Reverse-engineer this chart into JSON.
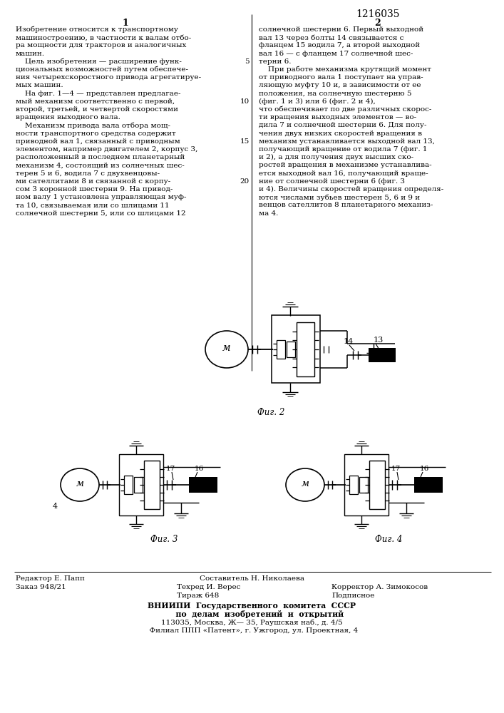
{
  "bg_color": "#ffffff",
  "title": "1216035",
  "col1_num": "1",
  "col2_num": "2",
  "fig2_caption": "Фиг. 2",
  "fig3_caption": "Фиг. 3",
  "fig4_caption": "Фиг. 4",
  "footer_editor_line1": "Редактор Е. Папп",
  "footer_editor_line2": "Заказ 948/21",
  "footer_comp": "Составитель Н. Николаева",
  "footer_tech": "Техред И. Верес",
  "footer_corr": "Корректор А. Зимокосов",
  "footer_tirazh": "Тираж 648",
  "footer_podp": "Подписное",
  "footer_vnipi_1": "ВНИИПИ  Государственного  комитета  СССР",
  "footer_vnipi_2": "      по  делам  изобретений  и  открытий",
  "footer_vnipi_3": "113035, Москва, Ж— 35, Раушская наб., д. 4/5",
  "footer_vnipi_4": "  Филиал ППП «Патент», г. Ужгород, ул. Проектная, 4",
  "col1_lines": [
    "Изобретение относится к транспортному",
    "машиностроению, в частности к валам отбо-",
    "ра мощности для тракторов и аналогичных",
    "машин.",
    "    Цель изобретения — расширение функ-",
    "циональных возможностей путем обеспече-",
    "ния четырехскоростного привода агрегатируе-",
    "мых машин.",
    "    На фиг. 1—4 — представлен предлагае-",
    "мый механизм соответственно с первой,",
    "второй, третьей, и четвертой скоростями",
    "вращения выходного вала.",
    "    Механизм привода вала отбора мощ-",
    "ности транспортного средства содержит",
    "приводной вал 1, связанный с приводным",
    "элементом, например двигателем 2, корпус 3,",
    "расположенный в последнем планетарный",
    "механизм 4, состоящий из солнечных шес-",
    "терен 5 и 6, водила 7 с двухвенцовы-",
    "ми сателлитами 8 и связанной с корпу-",
    "сом 3 коронной шестерни 9. На привод-",
    "ном валу 1 установлена управляющая муф-",
    "та 10, связываемая или со шлицами 11",
    "солнечной шестерни 5, или со шлицами 12"
  ],
  "col2_lines": [
    "солнечной шестерни 6. Первый выходной",
    "вал 13 через болты 14 связывается с",
    "фланцем 15 водила 7, а второй выходной",
    "вал 16 — с фланцем 17 солнечной шес-",
    "терни 6.",
    "    При работе механизма крутящий момент",
    "от приводного вала 1 поступает на управ-",
    "ляющую муфту 10 и, в зависимости от ее",
    "положения, на солнечную шестерню 5",
    "(фиг. 1 и 3) или 6 (фиг. 2 и 4),",
    "что обеспечивает по две различных скорос-",
    "ти вращения выходных элементов — во-",
    "дила 7 и солнечной шестерни 6. Для полу-",
    "чения двух низких скоростей вращения в",
    "механизм устанавливается выходной вал 13,",
    "получающий вращение от водила 7 (фиг. 1",
    "и 2), а для получения двух высших ско-",
    "ростей вращения в механизме устанавлива-",
    "ется выходной вал 16, получающий враще-",
    "ние от солнечной шестерни 6 (фиг. 3",
    "и 4). Величины скоростей вращения определя-",
    "ются числами зубьев шестерен 5, 6 и 9 и",
    "венцов сателлитов 8 планетарного механиз-",
    "ма 4."
  ],
  "line_number_rows": [
    4,
    9,
    14,
    19
  ],
  "line_number_values": [
    "5",
    "10",
    "15",
    "20"
  ]
}
